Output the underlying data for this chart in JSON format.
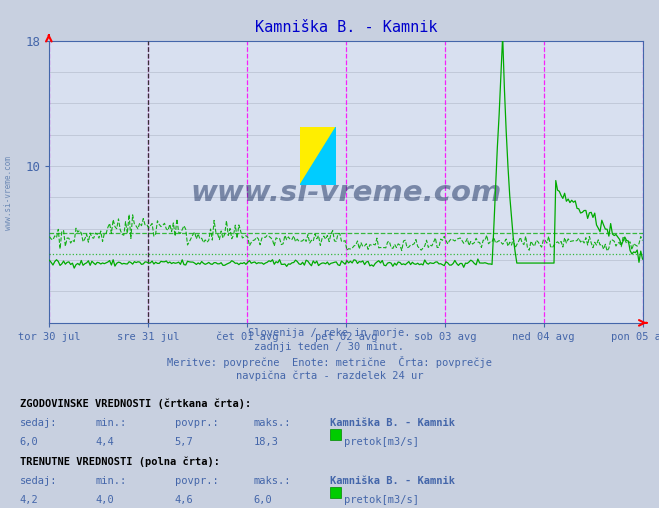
{
  "title": "Kamniška B. - Kamnik",
  "title_color": "#0000cc",
  "bg_color": "#c8d0e0",
  "plot_bg_color": "#d8e0f0",
  "grid_color": "#b8c0d0",
  "ylim": [
    0,
    18
  ],
  "yticks_labeled": [
    10,
    18
  ],
  "n_points": 336,
  "avg_hist": 5.7,
  "min_hist": 4.4,
  "avg_curr": 4.6,
  "min_curr": 4.0,
  "x_labels": [
    "tor 30 jul",
    "sre 31 jul",
    "čet 01 avg",
    "pet 02 avg",
    "sob 03 avg",
    "ned 04 avg",
    "pon 05 avg"
  ],
  "subtitle_lines": [
    "Slovenija / reke in morje.",
    "zadnji teden / 30 minut.",
    "Meritve: povprečne  Enote: metrične  Črta: povprečje",
    "navpična črta - razdelek 24 ur"
  ],
  "line_color": "#00aa00",
  "axis_color": "#4466aa",
  "text_color": "#4466aa",
  "hist_sedaj": "6,0",
  "hist_min": "4,4",
  "hist_povpr": "5,7",
  "hist_maks": "18,3",
  "curr_sedaj": "4,2",
  "curr_min": "4,0",
  "curr_povpr": "4,6",
  "curr_maks": "6,0"
}
